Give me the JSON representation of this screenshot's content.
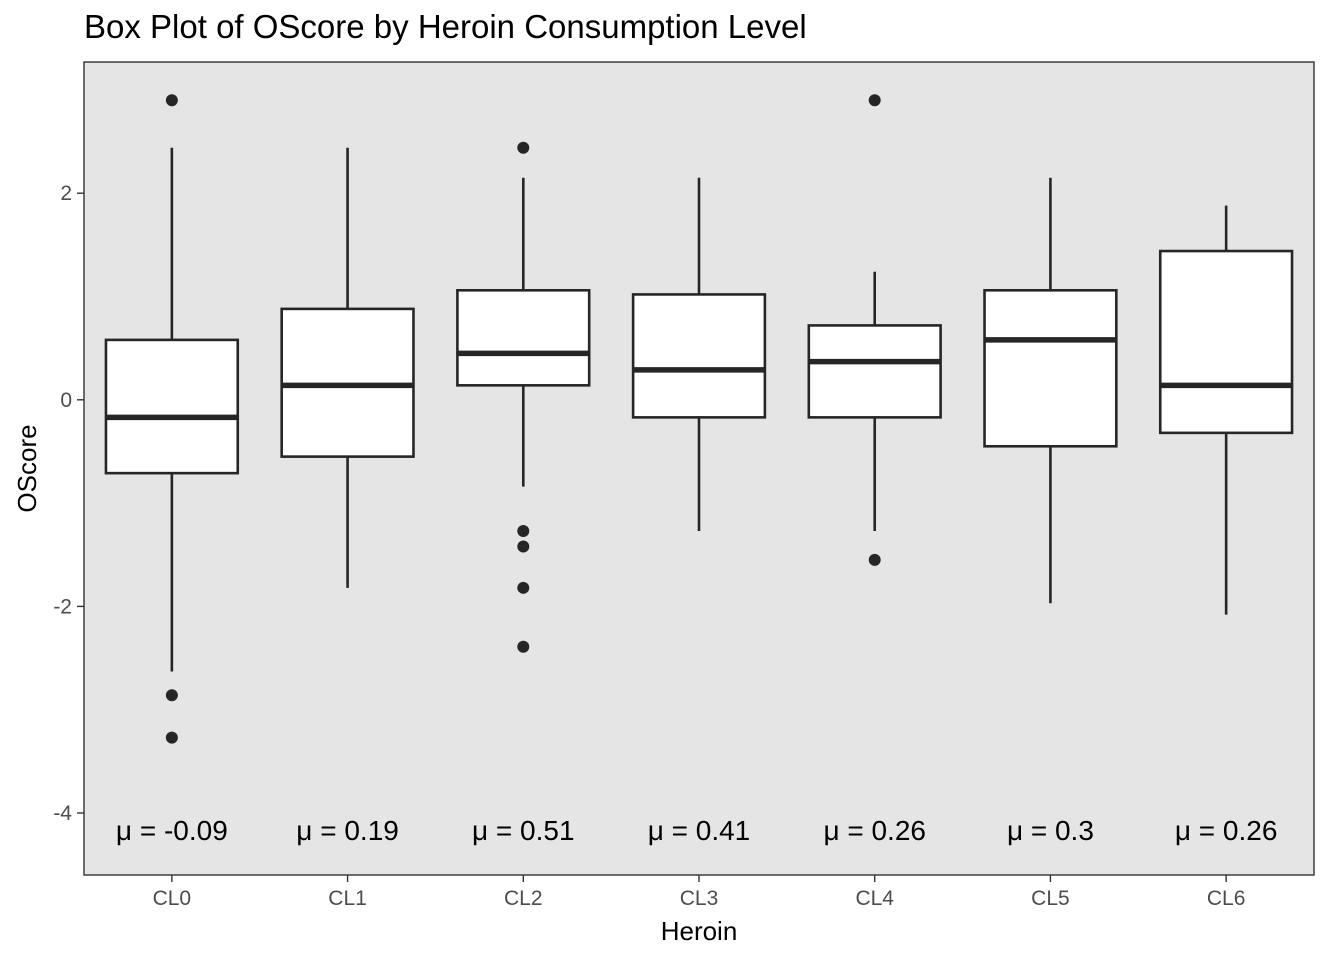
{
  "chart_data": {
    "type": "boxplot",
    "title": "Box Plot of OScore by Heroin Consumption Level",
    "xlabel": "Heroin",
    "ylabel": "OScore",
    "ylim": [
      -4.6,
      3.27
    ],
    "yticks": [
      -4,
      -2,
      0,
      2
    ],
    "categories": [
      "CL0",
      "CL1",
      "CL2",
      "CL3",
      "CL4",
      "CL5",
      "CL6"
    ],
    "boxes": [
      {
        "category": "CL0",
        "whisker_low": -2.63,
        "q1": -0.71,
        "median": -0.17,
        "q3": 0.58,
        "whisker_high": 2.44,
        "outliers": [
          2.9,
          -2.86,
          -3.27
        ],
        "mean_label": "μ = -0.09"
      },
      {
        "category": "CL1",
        "whisker_low": -1.82,
        "q1": -0.55,
        "median": 0.14,
        "q3": 0.88,
        "whisker_high": 2.44,
        "outliers": [],
        "mean_label": "μ = 0.19"
      },
      {
        "category": "CL2",
        "whisker_low": -0.84,
        "q1": 0.14,
        "median": 0.45,
        "q3": 1.06,
        "whisker_high": 2.15,
        "outliers": [
          2.44,
          -1.27,
          -1.42,
          -1.82,
          -2.39
        ],
        "mean_label": "μ = 0.51"
      },
      {
        "category": "CL3",
        "whisker_low": -1.27,
        "q1": -0.17,
        "median": 0.29,
        "q3": 1.02,
        "whisker_high": 2.15,
        "outliers": [],
        "mean_label": "μ = 0.41"
      },
      {
        "category": "CL4",
        "whisker_low": -1.27,
        "q1": -0.17,
        "median": 0.37,
        "q3": 0.72,
        "whisker_high": 1.24,
        "outliers": [
          2.9,
          -1.55
        ],
        "mean_label": "μ = 0.26"
      },
      {
        "category": "CL5",
        "whisker_low": -1.97,
        "q1": -0.45,
        "median": 0.58,
        "q3": 1.06,
        "whisker_high": 2.15,
        "outliers": [],
        "mean_label": "μ = 0.3"
      },
      {
        "category": "CL6",
        "whisker_low": -2.08,
        "q1": -0.32,
        "median": 0.14,
        "q3": 1.44,
        "whisker_high": 1.88,
        "outliers": [],
        "mean_label": "μ = 0.26"
      }
    ],
    "panel_color": "#e5e5e5",
    "box_fill": "#ffffff",
    "line_color": "#262626",
    "grid": false,
    "legend": "none"
  }
}
